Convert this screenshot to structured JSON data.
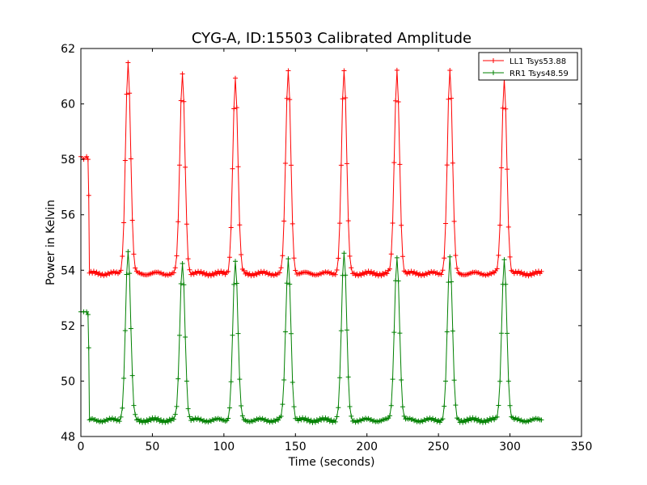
{
  "chart_data": {
    "type": "line",
    "title": "CYG-A, ID:15503 Calibrated Amplitude",
    "xlabel": "Time (seconds)",
    "ylabel": "Power in Kelvin",
    "xlim": [
      0,
      350
    ],
    "ylim": [
      48,
      62
    ],
    "xticks": [
      0,
      50,
      100,
      150,
      200,
      250,
      300,
      350
    ],
    "yticks": [
      48,
      50,
      52,
      54,
      56,
      58,
      60,
      62
    ],
    "grid": false,
    "legend_position": "top-right",
    "series": [
      {
        "name": "LL1 Tsys53.88",
        "color": "#ff0000",
        "baseline": 53.88,
        "start": {
          "x": [
            0,
            2,
            4,
            5,
            5.5,
            6
          ],
          "y": [
            58.1,
            58.0,
            58.1,
            58.0,
            56.7,
            53.9
          ]
        },
        "end_x": 322,
        "peaks": [
          {
            "x": 33,
            "y": 61.5
          },
          {
            "x": 71,
            "y": 61.1
          },
          {
            "x": 108,
            "y": 60.9
          },
          {
            "x": 145,
            "y": 61.2
          },
          {
            "x": 184,
            "y": 61.2
          },
          {
            "x": 221,
            "y": 61.2
          },
          {
            "x": 258,
            "y": 61.2
          },
          {
            "x": 296,
            "y": 60.9
          }
        ]
      },
      {
        "name": "RR1 Tsys48.59",
        "color": "#008000",
        "baseline": 48.59,
        "start": {
          "x": [
            0,
            2,
            4,
            5,
            5.5,
            6
          ],
          "y": [
            52.5,
            52.5,
            52.5,
            52.4,
            51.2,
            48.6
          ]
        },
        "end_x": 322,
        "peaks": [
          {
            "x": 33,
            "y": 54.7
          },
          {
            "x": 71,
            "y": 54.3
          },
          {
            "x": 108,
            "y": 54.3
          },
          {
            "x": 145,
            "y": 54.4
          },
          {
            "x": 184,
            "y": 54.6
          },
          {
            "x": 221,
            "y": 54.5
          },
          {
            "x": 258,
            "y": 54.4
          },
          {
            "x": 296,
            "y": 54.4
          }
        ]
      }
    ]
  }
}
